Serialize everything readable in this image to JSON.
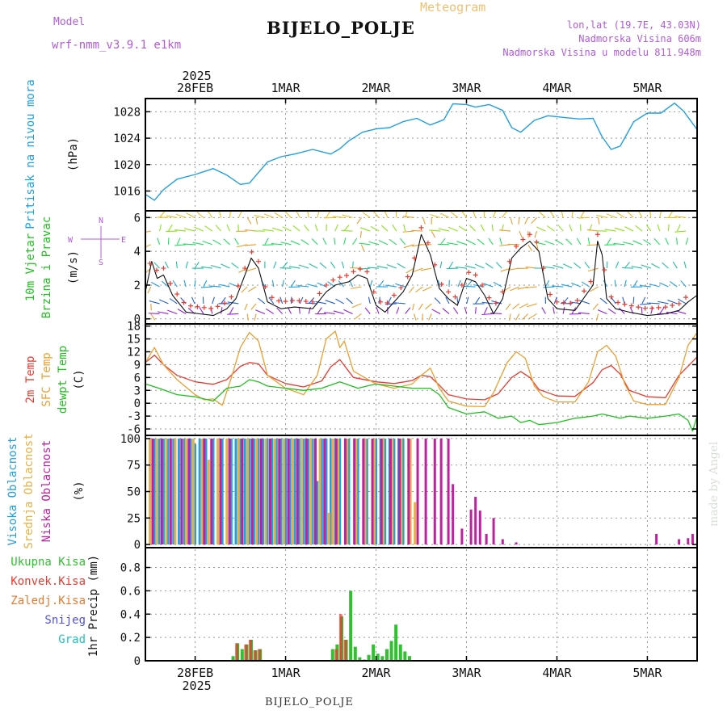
{
  "header": {
    "title": "BIJELO_POLJE",
    "meteogram": "Meteogram",
    "model_label": "Model",
    "model_name": "wrf-nmm_v3.9.1 e1km",
    "lonlat": "lon,lat (19.7E, 43.03N)",
    "elevation": "Nadmorska Visina 606m",
    "elevation_model": "Nadmorska Visina u modelu 811.948m",
    "footer_station": "BIJELO_POLJE",
    "watermark": "made by Angel"
  },
  "time_axis": {
    "top_year": "2025",
    "bottom_year": "2025",
    "day_labels": [
      "28FEB",
      "1MAR",
      "2MAR",
      "3MAR",
      "4MAR",
      "5MAR"
    ],
    "day_values": [
      0,
      1,
      2,
      3,
      4,
      5
    ],
    "range": [
      -0.55,
      5.55
    ]
  },
  "colors": {
    "pressure": "#1fa0e0",
    "temp2m": "#e83a30",
    "sfc_temp": "#e8a030",
    "dewpt": "#20c020",
    "wind_speed": "#111111",
    "gust_marker": "#e83a30",
    "cloud_high": "#20a0e0",
    "cloud_mid": "#e8b040",
    "cloud_low": "#c020a0",
    "precip_total": "#30c030",
    "precip_conv": "#e83a30",
    "label_pressure": "#1fa0e0",
    "label_wind": "#20c020",
    "label_purple": "#b05cd8"
  },
  "chart_data": [
    {
      "type": "line",
      "name": "pressure",
      "ylabel_left": "Pritisak na nivou mora",
      "unit": "(hPa)",
      "ylim": [
        1013,
        1030
      ],
      "yticks": [
        1016,
        1020,
        1024,
        1028
      ],
      "grid": true,
      "x": [
        -0.55,
        -0.45,
        -0.35,
        -0.2,
        0,
        0.2,
        0.35,
        0.5,
        0.6,
        0.7,
        0.8,
        0.95,
        1.1,
        1.3,
        1.5,
        1.6,
        1.7,
        1.85,
        2.0,
        2.15,
        2.3,
        2.45,
        2.6,
        2.75,
        2.85,
        3.0,
        3.1,
        3.25,
        3.4,
        3.5,
        3.6,
        3.75,
        3.9,
        4.1,
        4.25,
        4.4,
        4.5,
        4.6,
        4.7,
        4.85,
        5.0,
        5.15,
        5.3,
        5.4,
        5.55
      ],
      "values": [
        1015.5,
        1014.6,
        1016.2,
        1017.8,
        1018.5,
        1019.4,
        1018.4,
        1017.0,
        1017.2,
        1018.8,
        1020.4,
        1021.2,
        1021.6,
        1022.3,
        1021.6,
        1022.4,
        1023.6,
        1024.9,
        1025.4,
        1025.6,
        1026.5,
        1027.0,
        1026.0,
        1026.8,
        1029.2,
        1029.1,
        1028.7,
        1029.1,
        1028.2,
        1025.6,
        1024.9,
        1026.7,
        1027.4,
        1027.1,
        1026.9,
        1027.0,
        1024.2,
        1022.3,
        1022.8,
        1026.5,
        1027.8,
        1027.8,
        1029.3,
        1028.1,
        1025.3
      ],
      "title": ""
    },
    {
      "type": "line",
      "name": "wind",
      "ylabel_left_1": "10m Vjetar",
      "ylabel_left_2": "Brzina i Pravac",
      "unit": "(m/s)",
      "compass": {
        "n": "N",
        "e": "E",
        "s": "S",
        "w": "W"
      },
      "ylim": [
        -0.3,
        6.4
      ],
      "yticks": [
        0,
        2,
        4,
        6
      ],
      "grid": true,
      "x": [
        -0.55,
        -0.48,
        -0.42,
        -0.35,
        -0.25,
        -0.1,
        0.05,
        0.2,
        0.35,
        0.45,
        0.55,
        0.62,
        0.7,
        0.8,
        0.95,
        1.1,
        1.3,
        1.45,
        1.55,
        1.7,
        1.8,
        1.9,
        2.0,
        2.1,
        2.2,
        2.3,
        2.4,
        2.5,
        2.6,
        2.7,
        2.8,
        2.9,
        3.0,
        3.1,
        3.2,
        3.3,
        3.4,
        3.5,
        3.6,
        3.7,
        3.8,
        3.9,
        4.0,
        4.2,
        4.4,
        4.45,
        4.5,
        4.55,
        4.65,
        4.8,
        5.0,
        5.2,
        5.35,
        5.45,
        5.55
      ],
      "values": [
        1.6,
        3.4,
        2.4,
        2.6,
        1.4,
        0.4,
        0.3,
        0.2,
        0.6,
        1.2,
        2.6,
        3.6,
        3.0,
        1.0,
        0.6,
        0.7,
        0.6,
        1.6,
        2.0,
        2.2,
        2.6,
        2.4,
        0.8,
        0.4,
        1.0,
        1.6,
        2.6,
        5.0,
        3.8,
        1.8,
        1.2,
        0.8,
        2.4,
        2.2,
        1.4,
        0.3,
        1.2,
        3.6,
        4.2,
        4.6,
        4.0,
        1.2,
        0.6,
        0.5,
        2.0,
        4.6,
        3.8,
        1.2,
        0.6,
        0.4,
        0.2,
        0.3,
        0.5,
        1.0,
        1.4
      ],
      "arrow_rows_ms": [
        0.3,
        0.9,
        1.9,
        3.0,
        4.4,
        5.2,
        6.0
      ],
      "title": ""
    },
    {
      "type": "line",
      "name": "temperature",
      "ylabel_left_1": "2m Temp",
      "ylabel_left_2": "SFC Temp",
      "ylabel_left_3": "dewpt Temp",
      "unit": "(C)",
      "ylim": [
        -7.5,
        18.5
      ],
      "yticks": [
        -6,
        -3,
        0,
        3,
        6,
        9,
        12,
        15,
        18
      ],
      "grid": true,
      "series": [
        {
          "name": "2m Temp",
          "x": [
            -0.55,
            -0.45,
            -0.35,
            -0.2,
            0,
            0.2,
            0.35,
            0.5,
            0.6,
            0.7,
            0.8,
            1.0,
            1.2,
            1.4,
            1.5,
            1.6,
            1.75,
            2.0,
            2.2,
            2.4,
            2.5,
            2.6,
            2.7,
            2.8,
            3.0,
            3.2,
            3.35,
            3.5,
            3.6,
            3.7,
            3.8,
            4.0,
            4.2,
            4.4,
            4.5,
            4.6,
            4.7,
            4.8,
            5.0,
            5.2,
            5.35,
            5.55
          ],
          "values": [
            9.5,
            11.2,
            9.0,
            6.5,
            5.0,
            4.4,
            5.5,
            8.6,
            9.5,
            9.2,
            6.5,
            4.6,
            3.8,
            5.2,
            8.5,
            10.2,
            6.0,
            5.0,
            4.6,
            5.3,
            6.5,
            6.2,
            4.2,
            2.0,
            1.0,
            0.8,
            2.2,
            6.0,
            7.4,
            6.0,
            3.2,
            1.7,
            1.6,
            4.8,
            7.8,
            8.8,
            6.8,
            3.0,
            1.5,
            1.3,
            6.5,
            10.8
          ]
        },
        {
          "name": "SFC Temp",
          "x": [
            -0.55,
            -0.45,
            -0.35,
            -0.2,
            0,
            0.1,
            0.2,
            0.3,
            0.4,
            0.5,
            0.6,
            0.7,
            0.8,
            1.0,
            1.2,
            1.35,
            1.45,
            1.55,
            1.6,
            1.65,
            1.75,
            2.0,
            2.2,
            2.4,
            2.5,
            2.6,
            2.7,
            2.8,
            3.0,
            3.2,
            3.3,
            3.45,
            3.55,
            3.65,
            3.75,
            3.85,
            4.0,
            4.2,
            4.35,
            4.45,
            4.55,
            4.65,
            4.75,
            4.85,
            5.0,
            5.2,
            5.35,
            5.45,
            5.55
          ],
          "values": [
            9.5,
            13.0,
            9.0,
            5.5,
            2.0,
            0.8,
            1.0,
            -0.5,
            6.0,
            13.0,
            16.5,
            14.5,
            6.5,
            3.5,
            2.0,
            6.5,
            15.0,
            16.8,
            13.0,
            14.5,
            7.5,
            4.5,
            3.5,
            4.5,
            6.5,
            8.2,
            3.5,
            0.5,
            -0.7,
            -0.8,
            2.5,
            9.5,
            12.0,
            10.5,
            4.0,
            1.5,
            0.3,
            0.3,
            5.0,
            12.0,
            13.5,
            11.0,
            4.5,
            0.5,
            -0.3,
            -0.3,
            6.0,
            13.5,
            16.5
          ]
        },
        {
          "name": "dewpt Temp",
          "x": [
            -0.55,
            -0.4,
            -0.2,
            0,
            0.2,
            0.35,
            0.5,
            0.6,
            0.7,
            0.8,
            1.0,
            1.2,
            1.4,
            1.6,
            1.8,
            2.0,
            2.2,
            2.4,
            2.6,
            2.7,
            2.8,
            3.0,
            3.2,
            3.35,
            3.5,
            3.6,
            3.7,
            3.8,
            4.0,
            4.2,
            4.4,
            4.5,
            4.6,
            4.7,
            4.8,
            5.0,
            5.2,
            5.35,
            5.45,
            5.5,
            5.55
          ],
          "values": [
            4.5,
            3.5,
            2.0,
            1.5,
            0.5,
            3.5,
            4.0,
            5.5,
            5.0,
            4.0,
            3.5,
            3.0,
            3.5,
            5.0,
            3.5,
            4.5,
            4.0,
            3.5,
            3.5,
            2.0,
            -1.0,
            -2.5,
            -2.0,
            -3.5,
            -3.0,
            -4.5,
            -4.0,
            -5.0,
            -4.5,
            -3.5,
            -3.0,
            -2.5,
            -3.0,
            -3.5,
            -3.0,
            -3.5,
            -3.0,
            -2.5,
            -4.0,
            -6.5,
            -3.0
          ]
        }
      ],
      "title": ""
    },
    {
      "type": "bar",
      "name": "cloud",
      "ylabel_left_1": "Visoka Oblacnost",
      "ylabel_left_2": "Srednja Oblacnost",
      "ylabel_left_3": "Niska Oblacnost",
      "unit": "(%)",
      "ylim": [
        -3,
        103
      ],
      "yticks": [
        0,
        25,
        50,
        75,
        100
      ],
      "grid": true,
      "series": [
        {
          "name": "Visoka Oblacnost",
          "x": [
            -0.45,
            -0.4,
            -0.35,
            -0.3,
            -0.24,
            -0.18,
            -0.12,
            -0.05,
            0.0,
            0.05,
            0.12,
            0.2,
            0.3,
            0.4,
            0.45,
            0.5,
            0.55,
            0.6,
            0.65,
            0.7,
            0.75,
            0.8,
            0.85,
            0.9,
            0.95,
            1.0,
            1.05,
            1.1,
            1.15,
            1.2,
            1.25,
            1.3,
            1.35,
            1.4,
            1.45,
            1.5,
            1.55,
            1.6,
            1.7,
            1.8,
            1.9,
            2.0,
            2.05,
            2.1,
            2.15,
            2.2,
            2.25,
            2.3
          ],
          "values": [
            100,
            100,
            100,
            100,
            100,
            100,
            100,
            100,
            95,
            100,
            100,
            100,
            100,
            100,
            100,
            100,
            100,
            100,
            100,
            100,
            100,
            100,
            100,
            100,
            100,
            100,
            100,
            100,
            100,
            100,
            100,
            100,
            60,
            100,
            100,
            100,
            100,
            100,
            100,
            100,
            100,
            100,
            100,
            100,
            100,
            100,
            100,
            100
          ]
        },
        {
          "name": "Srednja Oblacnost",
          "x": [
            -0.5,
            -0.42,
            -0.32,
            -0.22,
            -0.1,
            -0.02,
            0.08,
            0.15,
            0.25,
            0.35,
            0.48,
            0.58,
            0.68,
            0.78,
            0.88,
            0.98,
            1.08,
            1.18,
            1.28,
            1.38,
            1.48,
            1.52,
            1.58,
            1.68,
            1.78,
            1.88,
            1.98,
            2.08,
            2.18,
            2.28,
            2.38,
            2.43
          ],
          "values": [
            100,
            100,
            100,
            100,
            100,
            100,
            100,
            80,
            100,
            100,
            100,
            100,
            100,
            100,
            100,
            100,
            100,
            100,
            100,
            100,
            30,
            100,
            100,
            100,
            100,
            100,
            100,
            100,
            100,
            100,
            100,
            40
          ]
        },
        {
          "name": "Niska Oblacnost",
          "x": [
            -0.47,
            -0.37,
            -0.27,
            -0.15,
            -0.07,
            0.1,
            0.18,
            0.28,
            0.38,
            0.52,
            0.63,
            0.73,
            0.83,
            0.93,
            1.03,
            1.13,
            1.23,
            1.33,
            1.43,
            1.56,
            1.66,
            1.76,
            1.86,
            1.96,
            2.06,
            2.16,
            2.26,
            2.36,
            2.46,
            2.55,
            2.65,
            2.72,
            2.8,
            2.85,
            2.95,
            3.05,
            3.1,
            3.15,
            3.22,
            3.3,
            3.4,
            3.55,
            5.1,
            5.35,
            5.45,
            5.5
          ],
          "values": [
            100,
            100,
            100,
            100,
            100,
            100,
            100,
            100,
            100,
            100,
            100,
            100,
            100,
            100,
            100,
            100,
            100,
            100,
            100,
            100,
            100,
            100,
            100,
            100,
            100,
            100,
            100,
            100,
            100,
            100,
            100,
            100,
            100,
            57,
            15,
            33,
            45,
            32,
            10,
            25,
            5,
            2,
            10,
            5,
            6,
            10
          ]
        }
      ],
      "title": ""
    },
    {
      "type": "bar",
      "name": "precipitation",
      "legend_labels": [
        "Ukupna Kisa",
        "Konvek.Kisa",
        "Zaledj.Kisa",
        "Snijeg",
        "Grad"
      ],
      "legend_colors": [
        "#30c030",
        "#e83a30",
        "#e87a30",
        "#5050e0",
        "#20c0c0"
      ],
      "ylabel": "1hr Precip (mm)",
      "ylim": [
        0,
        0.97
      ],
      "yticks": [
        0,
        0.2,
        0.4,
        0.6,
        0.8
      ],
      "ytick_labels": [
        "0",
        "0.2",
        "0.4",
        "0.6",
        "0.8"
      ],
      "grid": true,
      "series": [
        {
          "name": "Ukupna Kisa",
          "x": [
            0.42,
            0.47,
            0.52,
            0.57,
            0.62,
            0.67,
            0.72,
            1.52,
            1.57,
            1.62,
            1.67,
            1.72,
            1.77,
            1.82,
            1.87,
            1.92,
            1.97,
            2.02,
            2.07,
            2.12,
            2.17,
            2.22,
            2.27,
            2.32,
            2.37
          ],
          "values": [
            0.04,
            0.15,
            0.1,
            0.14,
            0.18,
            0.09,
            0.1,
            0.1,
            0.14,
            0.38,
            0.18,
            0.6,
            0.12,
            0.03,
            0.01,
            0.05,
            0.14,
            0.06,
            0.04,
            0.1,
            0.17,
            0.31,
            0.14,
            0.08,
            0.04
          ]
        },
        {
          "name": "Konvek.Kisa",
          "x": [
            0.46,
            0.56,
            0.61,
            0.66,
            0.71,
            1.56,
            1.61,
            1.66
          ],
          "values": [
            0.15,
            0.14,
            0.18,
            0.09,
            0.1,
            0.1,
            0.4,
            0.18
          ]
        }
      ],
      "title": ""
    }
  ]
}
